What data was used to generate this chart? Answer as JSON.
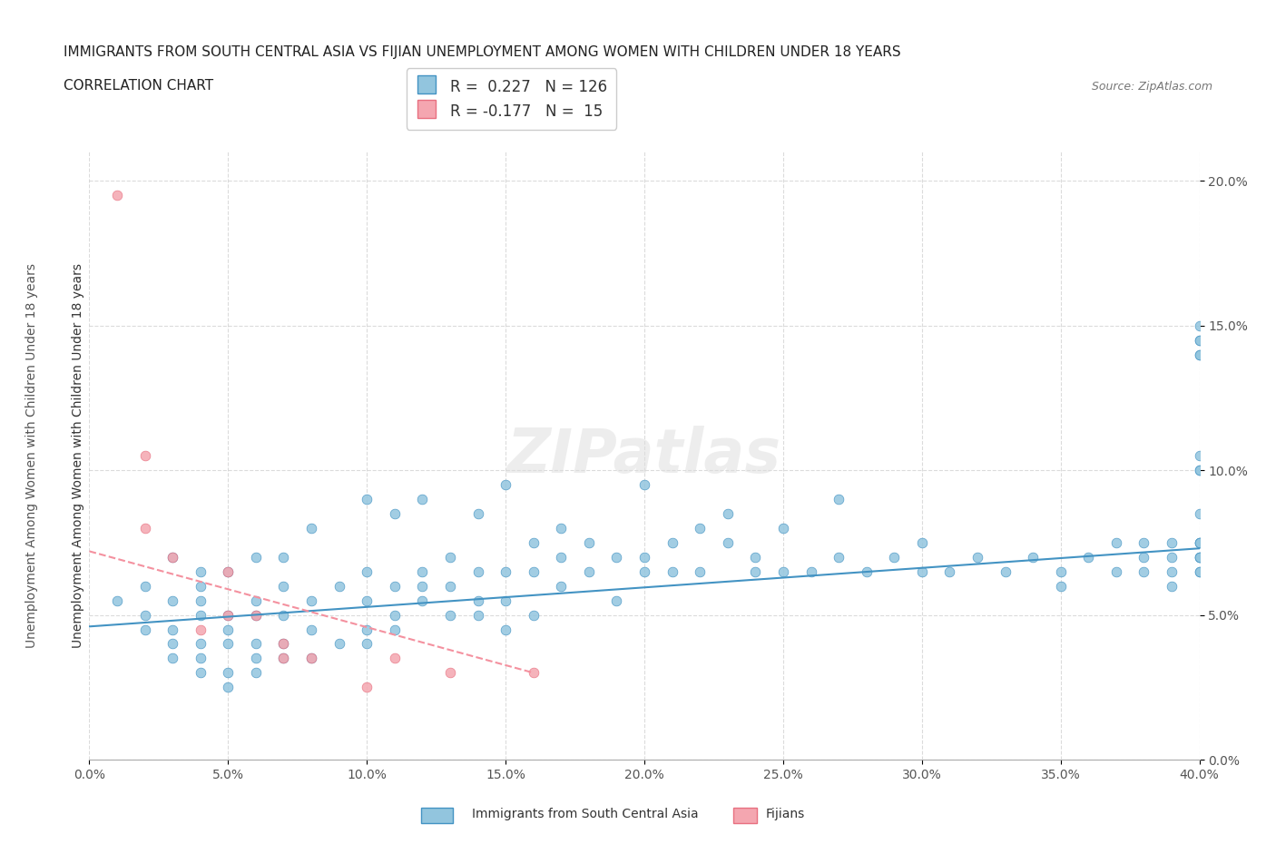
{
  "title_line1": "IMMIGRANTS FROM SOUTH CENTRAL ASIA VS FIJIAN UNEMPLOYMENT AMONG WOMEN WITH CHILDREN UNDER 18 YEARS",
  "title_line2": "CORRELATION CHART",
  "source_text": "Source: ZipAtlas.com",
  "xlabel_ticks": [
    "0.0%",
    "5.0%",
    "10.0%",
    "15.0%",
    "20.0%",
    "25.0%",
    "30.0%",
    "35.0%",
    "40.0%"
  ],
  "xlabel_vals": [
    0.0,
    0.05,
    0.1,
    0.15,
    0.2,
    0.25,
    0.3,
    0.35,
    0.4
  ],
  "ylabel_ticks": [
    "0.0%",
    "5.0%",
    "10.0%",
    "15.0%",
    "20.0%"
  ],
  "ylabel_vals": [
    0.0,
    0.05,
    0.1,
    0.15,
    0.2
  ],
  "xlim": [
    0.0,
    0.4
  ],
  "ylim": [
    0.0,
    0.21
  ],
  "ylabel": "Unemployment Among Women with Children Under 18 years",
  "blue_color": "#92C5DE",
  "pink_color": "#F4A6B0",
  "blue_line_color": "#4393C3",
  "pink_line_color": "#F4919F",
  "watermark": "ZIPatlas",
  "legend_r1": "R =  0.227   N = 126",
  "legend_r2": "R = -0.177   N =  15",
  "blue_scatter_x": [
    0.01,
    0.02,
    0.02,
    0.02,
    0.03,
    0.03,
    0.03,
    0.03,
    0.03,
    0.04,
    0.04,
    0.04,
    0.04,
    0.04,
    0.04,
    0.04,
    0.05,
    0.05,
    0.05,
    0.05,
    0.05,
    0.05,
    0.06,
    0.06,
    0.06,
    0.06,
    0.06,
    0.06,
    0.07,
    0.07,
    0.07,
    0.07,
    0.07,
    0.08,
    0.08,
    0.08,
    0.08,
    0.09,
    0.09,
    0.1,
    0.1,
    0.1,
    0.1,
    0.1,
    0.11,
    0.11,
    0.11,
    0.11,
    0.12,
    0.12,
    0.12,
    0.12,
    0.13,
    0.13,
    0.13,
    0.14,
    0.14,
    0.14,
    0.14,
    0.15,
    0.15,
    0.15,
    0.15,
    0.16,
    0.16,
    0.16,
    0.17,
    0.17,
    0.17,
    0.18,
    0.18,
    0.19,
    0.19,
    0.2,
    0.2,
    0.2,
    0.21,
    0.21,
    0.22,
    0.22,
    0.23,
    0.23,
    0.24,
    0.24,
    0.25,
    0.25,
    0.26,
    0.27,
    0.27,
    0.28,
    0.29,
    0.3,
    0.3,
    0.31,
    0.32,
    0.33,
    0.34,
    0.35,
    0.35,
    0.36,
    0.37,
    0.37,
    0.38,
    0.38,
    0.38,
    0.39,
    0.39,
    0.39,
    0.39,
    0.4,
    0.4,
    0.4,
    0.4,
    0.4,
    0.4,
    0.4,
    0.4,
    0.4,
    0.4,
    0.4,
    0.4,
    0.4,
    0.4,
    0.4,
    0.4,
    0.4
  ],
  "blue_scatter_y": [
    0.055,
    0.045,
    0.05,
    0.06,
    0.035,
    0.04,
    0.045,
    0.055,
    0.07,
    0.03,
    0.035,
    0.04,
    0.05,
    0.055,
    0.06,
    0.065,
    0.025,
    0.03,
    0.04,
    0.045,
    0.05,
    0.065,
    0.03,
    0.035,
    0.04,
    0.05,
    0.055,
    0.07,
    0.035,
    0.04,
    0.05,
    0.06,
    0.07,
    0.035,
    0.045,
    0.055,
    0.08,
    0.04,
    0.06,
    0.04,
    0.045,
    0.055,
    0.065,
    0.09,
    0.045,
    0.05,
    0.06,
    0.085,
    0.055,
    0.06,
    0.065,
    0.09,
    0.05,
    0.06,
    0.07,
    0.05,
    0.055,
    0.065,
    0.085,
    0.045,
    0.055,
    0.065,
    0.095,
    0.05,
    0.065,
    0.075,
    0.06,
    0.07,
    0.08,
    0.065,
    0.075,
    0.055,
    0.07,
    0.065,
    0.07,
    0.095,
    0.065,
    0.075,
    0.065,
    0.08,
    0.075,
    0.085,
    0.065,
    0.07,
    0.065,
    0.08,
    0.065,
    0.07,
    0.09,
    0.065,
    0.07,
    0.065,
    0.075,
    0.065,
    0.07,
    0.065,
    0.07,
    0.06,
    0.065,
    0.07,
    0.065,
    0.075,
    0.07,
    0.065,
    0.075,
    0.065,
    0.07,
    0.075,
    0.06,
    0.065,
    0.07,
    0.075,
    0.07,
    0.075,
    0.14,
    0.145,
    0.145,
    0.15,
    0.14,
    0.1,
    0.1,
    0.105,
    0.085,
    0.075,
    0.07,
    0.065
  ],
  "pink_scatter_x": [
    0.01,
    0.02,
    0.02,
    0.03,
    0.04,
    0.05,
    0.05,
    0.06,
    0.07,
    0.07,
    0.08,
    0.1,
    0.11,
    0.13,
    0.16
  ],
  "pink_scatter_y": [
    0.195,
    0.105,
    0.08,
    0.07,
    0.045,
    0.05,
    0.065,
    0.05,
    0.04,
    0.035,
    0.035,
    0.025,
    0.035,
    0.03,
    0.03
  ],
  "blue_trendline_x": [
    0.0,
    0.4
  ],
  "blue_trendline_y": [
    0.046,
    0.073
  ],
  "pink_trendline_x": [
    0.0,
    0.16
  ],
  "pink_trendline_y": [
    0.072,
    0.03
  ]
}
